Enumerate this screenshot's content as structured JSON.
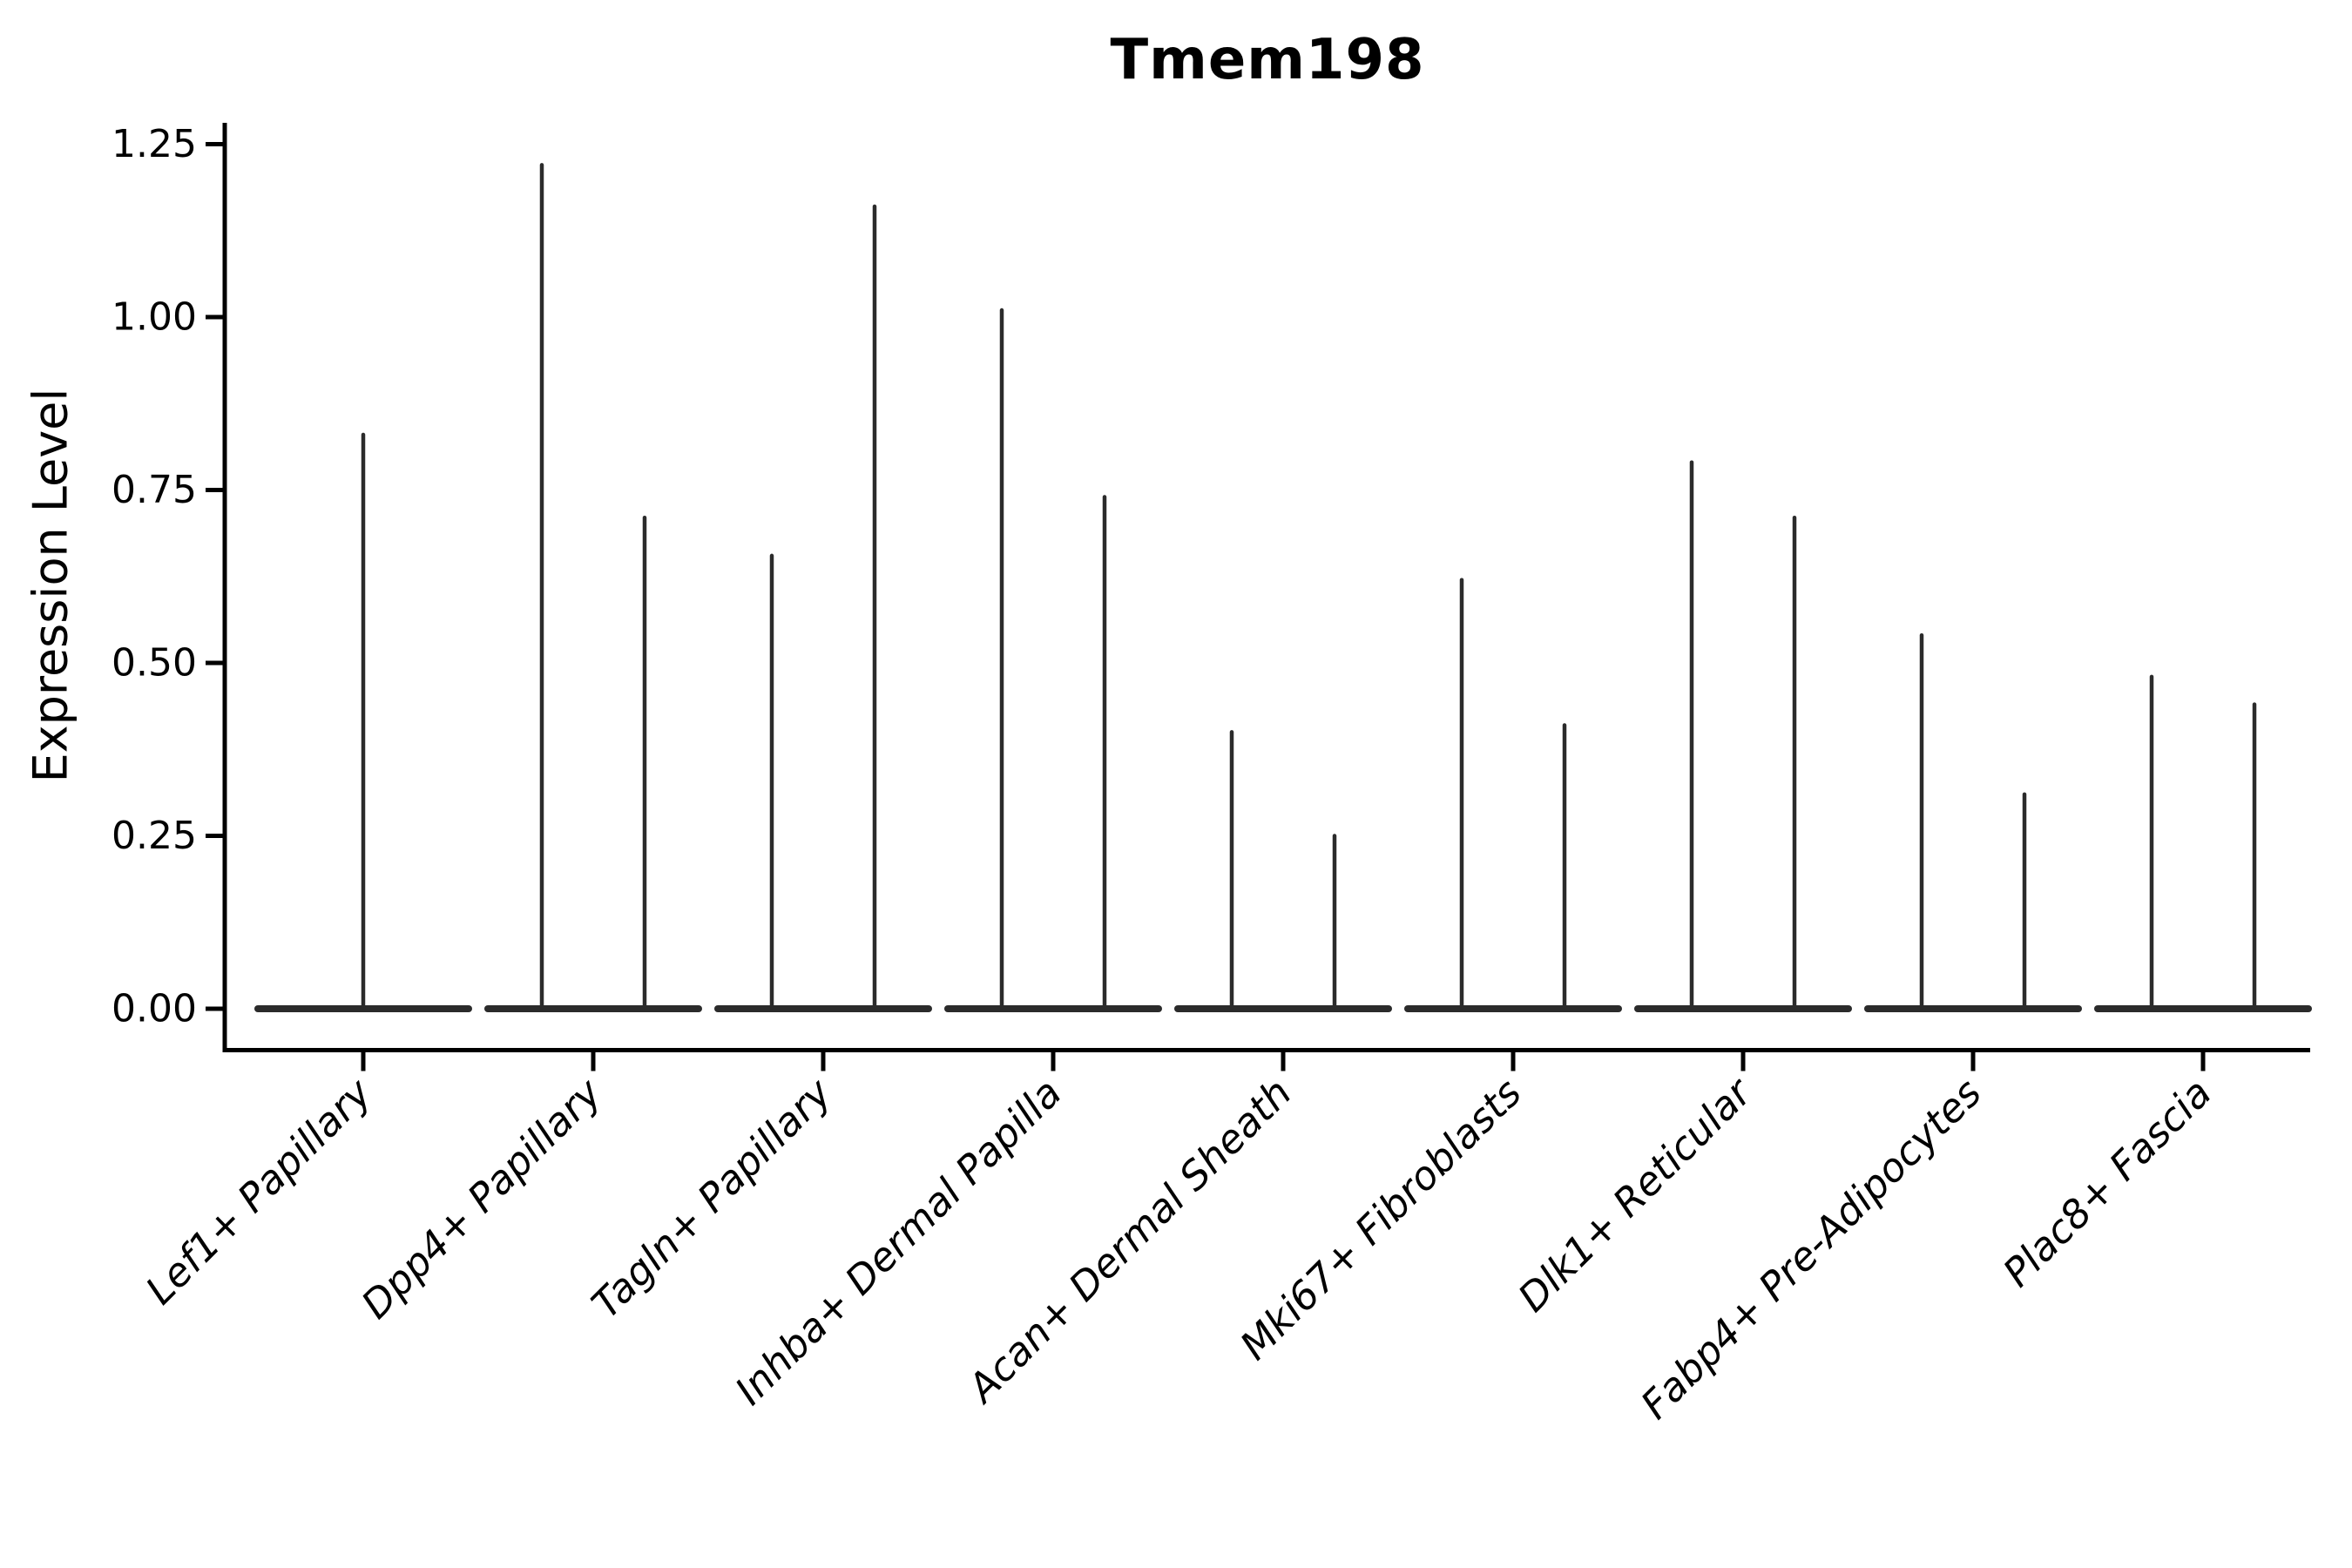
{
  "chart_data": {
    "type": "violin",
    "title": "Tmem198",
    "ylabel": "Expression Level",
    "xlabel": "",
    "ylim": [
      -0.06,
      1.28
    ],
    "grid": false,
    "legend": null,
    "ytick_labels": [
      "0.00",
      "0.25",
      "0.50",
      "0.75",
      "1.00",
      "1.25"
    ],
    "ytick_values": [
      0,
      0.25,
      0.5,
      0.75,
      1.0,
      1.25
    ],
    "categories": [
      "Lef1+ Papillary",
      "Dpp4+ Papillary",
      "Tagln+ Papillary",
      "Inhba+ Dermal Papilla",
      "Acan+ Dermal Sheath",
      "Mki67+ Fibroblasts",
      "Dlk1+ Reticular",
      "Fabp4+ Pre-Adipocytes",
      "Plac8+ Fascia"
    ],
    "violins": [
      {
        "category": "Lef1+ Papillary",
        "peaks": [
          0.83
        ]
      },
      {
        "category": "Dpp4+ Papillary",
        "peaks": [
          1.22,
          0.71
        ]
      },
      {
        "category": "Tagln+ Papillary",
        "peaks": [
          0.655,
          1.16
        ]
      },
      {
        "category": "Inhba+ Dermal Papilla",
        "peaks": [
          1.01,
          0.74
        ]
      },
      {
        "category": "Acan+ Dermal Sheath",
        "peaks": [
          0.4,
          0.25
        ]
      },
      {
        "category": "Mki67+ Fibroblasts",
        "peaks": [
          0.62,
          0.41
        ]
      },
      {
        "category": "Dlk1+ Reticular",
        "peaks": [
          0.79,
          0.71
        ]
      },
      {
        "category": "Fabp4+ Pre-Adipocytes",
        "peaks": [
          0.54,
          0.31
        ]
      },
      {
        "category": "Plac8+ Fascia",
        "peaks": [
          0.48,
          0.44
        ]
      }
    ],
    "colors": {
      "violin": "#2b2b2b",
      "axis": "#000000",
      "text": "#000000",
      "background": "#ffffff"
    }
  }
}
